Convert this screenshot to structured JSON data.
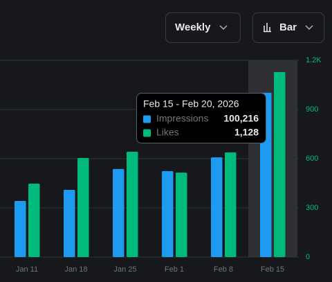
{
  "controls": {
    "period": "Weekly",
    "view": "Bar"
  },
  "chart_data": {
    "type": "bar",
    "categories": [
      "Jan 11",
      "Jan 18",
      "Jan 25",
      "Feb 1",
      "Feb 8",
      "Feb 15"
    ],
    "series": [
      {
        "name": "Impressions",
        "color": "#1d9bf0",
        "axis": "y2",
        "values": [
          34200,
          41000,
          53700,
          52400,
          60800,
          100216
        ],
        "value_labels": [
          null,
          null,
          null,
          null,
          null,
          "100,216"
        ]
      },
      {
        "name": "Likes",
        "color": "#00ba7c",
        "values": [
          448,
          604,
          642,
          515,
          638,
          1128
        ],
        "value_labels": [
          null,
          null,
          null,
          null,
          null,
          "1,128"
        ]
      }
    ],
    "ylim": [
      0,
      1200
    ],
    "yticks": [
      0,
      300,
      600,
      900,
      {
        "value": 1200,
        "label": "1.2K"
      }
    ],
    "y2lim": [
      0,
      120000
    ],
    "grid": true,
    "tooltip": {
      "title": "Feb 15 - Feb 20, 2026",
      "category_index": 5
    }
  }
}
